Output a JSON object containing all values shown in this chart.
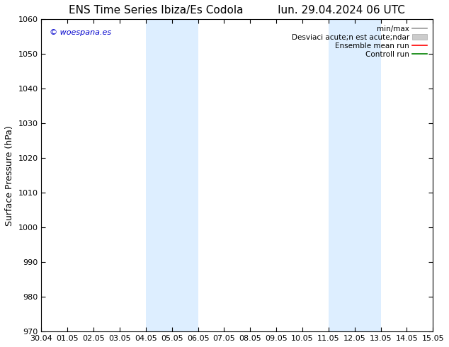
{
  "title_left": "ENS Time Series Ibiza/Es Codola",
  "title_right": "lun. 29.04.2024 06 UTC",
  "ylabel": "Surface Pressure (hPa)",
  "ylim": [
    970,
    1060
  ],
  "yticks": [
    970,
    980,
    990,
    1000,
    1010,
    1020,
    1030,
    1040,
    1050,
    1060
  ],
  "xtick_labels": [
    "30.04",
    "01.05",
    "02.05",
    "03.05",
    "04.05",
    "05.05",
    "06.05",
    "07.05",
    "08.05",
    "09.05",
    "10.05",
    "11.05",
    "12.05",
    "13.05",
    "14.05",
    "15.05"
  ],
  "xlim_start": 0,
  "xlim_end": 15,
  "shaded_bands": [
    {
      "x_start": 4,
      "x_end": 6,
      "color": "#ddeeff"
    },
    {
      "x_start": 11,
      "x_end": 13,
      "color": "#ddeeff"
    }
  ],
  "watermark": "© woespana.es",
  "watermark_color": "#0000cc",
  "legend_label_minmax": "min/max",
  "legend_label_std": "Desviaci acute;n est acute;ndar",
  "legend_label_ens": "Ensemble mean run",
  "legend_label_ctrl": "Controll run",
  "legend_color_minmax": "#999999",
  "legend_color_std": "#cccccc",
  "legend_color_ens": "#ff0000",
  "legend_color_ctrl": "#008000",
  "bg_color": "#ffffff",
  "title_fontsize": 11,
  "tick_fontsize": 8,
  "ylabel_fontsize": 9,
  "legend_fontsize": 7.5
}
